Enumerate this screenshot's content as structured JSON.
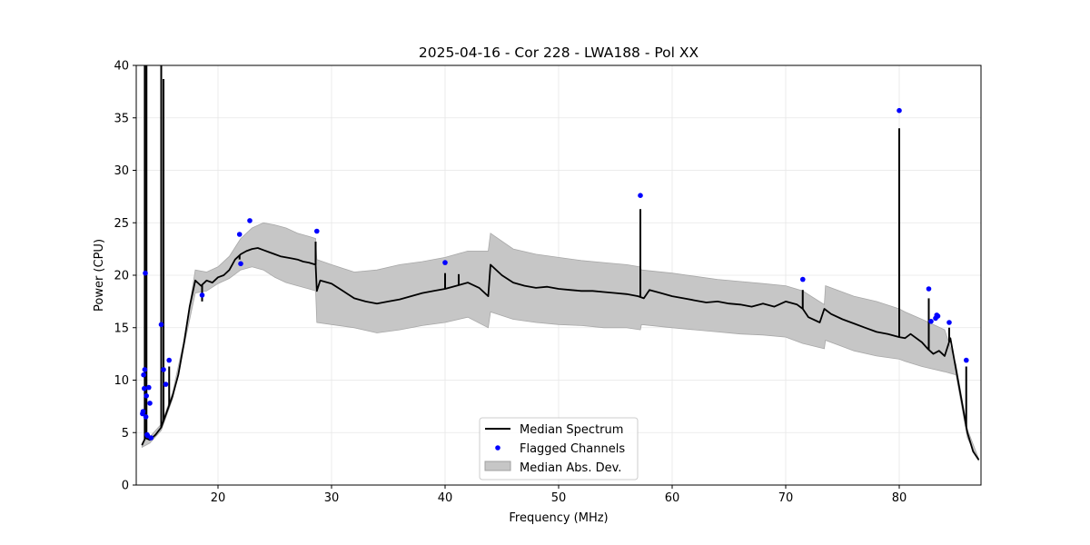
{
  "chart_data": {
    "type": "line",
    "title": "2025-04-16 - Cor 228 - LWA188 - Pol XX",
    "xlabel": "Frequency (MHz)",
    "ylabel": "Power (CPU)",
    "xlim": [
      12.8,
      87.2
    ],
    "ylim": [
      0,
      40
    ],
    "xticks": [
      20,
      30,
      40,
      50,
      60,
      70,
      80
    ],
    "yticks": [
      0,
      5,
      10,
      15,
      20,
      25,
      30,
      35,
      40
    ],
    "grid": true,
    "legend": {
      "location": "lower center",
      "entries": [
        {
          "label": "Median Spectrum",
          "kind": "line"
        },
        {
          "label": "Flagged Channels",
          "kind": "marker"
        },
        {
          "label": "Median Abs. Dev.",
          "kind": "fill"
        }
      ]
    },
    "series": [
      {
        "name": "Median Spectrum",
        "color": "#000000",
        "x": [
          13.3,
          13.6,
          14.0,
          14.5,
          15.0,
          15.5,
          16.0,
          16.5,
          17.0,
          17.5,
          18.0,
          18.5,
          19.0,
          19.5,
          20.0,
          20.5,
          21.0,
          21.5,
          22.0,
          22.5,
          23.0,
          23.5,
          24.0,
          24.5,
          25.0,
          25.5,
          26.0,
          26.5,
          27.0,
          27.5,
          28.0,
          28.6,
          28.7,
          29.0,
          30.0,
          31.0,
          32.0,
          33.0,
          34.0,
          35.0,
          36.0,
          37.0,
          38.0,
          39.0,
          40.0,
          41.0,
          42.0,
          43.0,
          43.8,
          44.0,
          45.0,
          46.0,
          47.0,
          48.0,
          49.0,
          50.0,
          51.0,
          52.0,
          53.0,
          54.0,
          55.0,
          56.0,
          57.0,
          57.5,
          58.0,
          59.0,
          60.0,
          61.0,
          62.0,
          63.0,
          64.0,
          65.0,
          66.0,
          67.0,
          68.0,
          69.0,
          70.0,
          71.0,
          71.5,
          72.0,
          73.0,
          73.4,
          74.0,
          75.0,
          76.0,
          77.0,
          78.0,
          79.0,
          80.0,
          80.5,
          81.0,
          82.0,
          82.5,
          83.0,
          83.5,
          84.0,
          84.5,
          85.0,
          85.5,
          86.0,
          86.5,
          87.0
        ],
        "y": [
          3.8,
          4.5,
          4.3,
          4.8,
          5.5,
          7.0,
          8.5,
          10.5,
          13.5,
          17.0,
          19.5,
          19.0,
          19.5,
          19.3,
          19.8,
          20.0,
          20.5,
          21.5,
          22.0,
          22.3,
          22.5,
          22.6,
          22.4,
          22.2,
          22.0,
          21.8,
          21.7,
          21.6,
          21.5,
          21.3,
          21.2,
          21.0,
          18.5,
          19.5,
          19.2,
          18.5,
          17.8,
          17.5,
          17.3,
          17.5,
          17.7,
          18.0,
          18.3,
          18.5,
          18.7,
          19.0,
          19.3,
          18.8,
          18.0,
          21.0,
          20.0,
          19.3,
          19.0,
          18.8,
          18.9,
          18.7,
          18.6,
          18.5,
          18.5,
          18.4,
          18.3,
          18.2,
          18.0,
          17.8,
          18.6,
          18.3,
          18.0,
          17.8,
          17.6,
          17.4,
          17.5,
          17.3,
          17.2,
          17.0,
          17.3,
          17.0,
          17.5,
          17.2,
          16.8,
          16.0,
          15.5,
          16.8,
          16.3,
          15.8,
          15.4,
          15.0,
          14.6,
          14.4,
          14.1,
          14.0,
          14.4,
          13.6,
          13.0,
          12.5,
          12.8,
          12.3,
          14.0,
          11.0,
          8.0,
          5.0,
          3.2,
          2.4
        ]
      },
      {
        "name": "Median Abs. Dev.",
        "color": "#a8a8a8",
        "x": [
          13.3,
          14.0,
          15.0,
          16.0,
          17.0,
          18.0,
          19.0,
          20.0,
          21.0,
          22.0,
          23.0,
          24.0,
          25.0,
          26.0,
          27.0,
          28.0,
          28.6,
          28.7,
          30.0,
          32.0,
          34.0,
          36.0,
          38.0,
          40.0,
          42.0,
          43.8,
          44.0,
          46.0,
          48.0,
          50.0,
          52.0,
          54.0,
          56.0,
          57.2,
          57.3,
          60.0,
          62.0,
          64.0,
          66.0,
          68.0,
          70.0,
          71.5,
          73.4,
          73.5,
          76.0,
          78.0,
          80.0,
          80.5,
          82.0,
          84.0,
          85.0,
          86.0,
          87.0
        ],
        "upper": [
          4.0,
          4.6,
          5.8,
          8.8,
          13.8,
          20.5,
          20.3,
          20.8,
          21.8,
          23.5,
          24.5,
          25.0,
          24.8,
          24.5,
          24.0,
          23.7,
          23.5,
          21.5,
          21.0,
          20.3,
          20.5,
          21.0,
          21.3,
          21.7,
          22.3,
          22.3,
          24.0,
          22.5,
          22.0,
          21.7,
          21.4,
          21.2,
          21.0,
          20.8,
          20.5,
          20.2,
          19.9,
          19.6,
          19.4,
          19.2,
          19.0,
          18.5,
          17.2,
          19.0,
          18.0,
          17.5,
          16.8,
          16.5,
          15.8,
          14.8,
          11.5,
          5.3,
          2.5
        ],
        "lower": [
          3.6,
          4.0,
          5.2,
          8.2,
          13.2,
          18.3,
          18.5,
          19.2,
          19.7,
          20.5,
          20.8,
          20.5,
          19.8,
          19.3,
          19.0,
          18.7,
          18.5,
          15.5,
          15.3,
          15.0,
          14.5,
          14.8,
          15.2,
          15.5,
          16.0,
          15.0,
          16.5,
          15.8,
          15.5,
          15.3,
          15.2,
          15.0,
          15.0,
          14.8,
          15.3,
          15.0,
          14.8,
          14.6,
          14.4,
          14.3,
          14.1,
          13.5,
          13.0,
          13.8,
          12.8,
          12.3,
          12.0,
          11.8,
          11.3,
          10.8,
          10.5,
          4.5,
          2.3
        ]
      },
      {
        "name": "Flagged Channels",
        "color": "#0000ff",
        "type": "scatter",
        "x": [
          13.35,
          13.4,
          13.45,
          13.5,
          13.55,
          13.6,
          13.65,
          13.7,
          13.75,
          13.8,
          13.9,
          14.0,
          14.1,
          15.0,
          15.2,
          15.4,
          15.7,
          18.6,
          21.9,
          22.0,
          22.8,
          28.7,
          40.0,
          57.2,
          71.5,
          80.0,
          82.6,
          82.8,
          83.2,
          83.3,
          83.4,
          84.4,
          85.9
        ],
        "y": [
          6.8,
          7.0,
          10.5,
          9.2,
          11.0,
          20.2,
          6.5,
          8.5,
          4.8,
          4.7,
          9.3,
          7.8,
          4.5,
          15.3,
          11.0,
          9.6,
          11.9,
          18.1,
          23.9,
          21.1,
          25.2,
          24.2,
          21.2,
          27.6,
          19.6,
          35.7,
          18.7,
          15.6,
          15.9,
          16.2,
          16.1,
          15.5,
          11.9
        ]
      }
    ],
    "spikes": [
      {
        "x": 13.55,
        "top": 40
      },
      {
        "x": 13.7,
        "top": 40
      },
      {
        "x": 15.0,
        "top": 40
      },
      {
        "x": 15.2,
        "top": 38.7
      },
      {
        "x": 15.7,
        "top": 11.3
      },
      {
        "x": 18.6,
        "top": 17.5
      },
      {
        "x": 21.9,
        "top": 21.5
      },
      {
        "x": 28.6,
        "top": 23.2
      },
      {
        "x": 40.0,
        "top": 20.2
      },
      {
        "x": 41.2,
        "top": 20.1
      },
      {
        "x": 57.2,
        "top": 26.3
      },
      {
        "x": 71.5,
        "top": 18.6
      },
      {
        "x": 80.0,
        "top": 34.0
      },
      {
        "x": 82.6,
        "top": 17.8
      },
      {
        "x": 84.4,
        "top": 15.0
      },
      {
        "x": 85.9,
        "top": 11.3
      }
    ]
  }
}
